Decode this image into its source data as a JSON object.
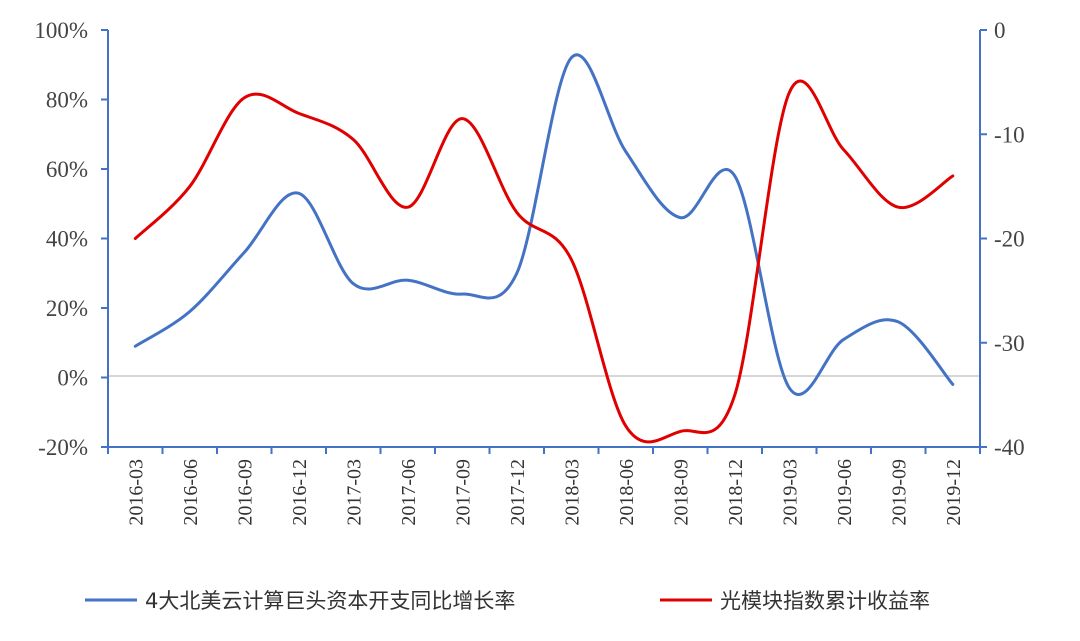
{
  "chart_data": {
    "type": "line",
    "x": [
      "2016-03",
      "2016-06",
      "2016-09",
      "2016-12",
      "2017-03",
      "2017-06",
      "2017-09",
      "2017-12",
      "2018-03",
      "2018-06",
      "2018-09",
      "2018-12",
      "2019-03",
      "2019-06",
      "2019-09",
      "2019-12"
    ],
    "y_left": {
      "ticks": [
        "100%",
        "80%",
        "60%",
        "40%",
        "20%",
        "0%",
        "-20%"
      ],
      "range": [
        -20,
        100
      ],
      "unit": "%"
    },
    "y_right": {
      "ticks": [
        "0",
        "-10",
        "-20",
        "-30",
        "-40"
      ],
      "range": [
        -40,
        0
      ]
    },
    "series": [
      {
        "name": "4大北美云计算巨头资本开支同比增长率",
        "axis": "left",
        "color": "#4472C4",
        "values": [
          9,
          19,
          36,
          53,
          27,
          28,
          24,
          30,
          92,
          65,
          46,
          58,
          -3,
          11,
          16,
          -2
        ]
      },
      {
        "name": "光模块指数累计收益率",
        "axis": "right",
        "color": "#E00000",
        "values": [
          -20,
          -15,
          -6.5,
          -8,
          -10.5,
          -17,
          -8.5,
          -17.5,
          -22,
          -38,
          -38.5,
          -35,
          -6,
          -11.5,
          -17,
          -14
        ]
      }
    ],
    "legend_position": "bottom",
    "grid": false,
    "zero_line": true
  }
}
